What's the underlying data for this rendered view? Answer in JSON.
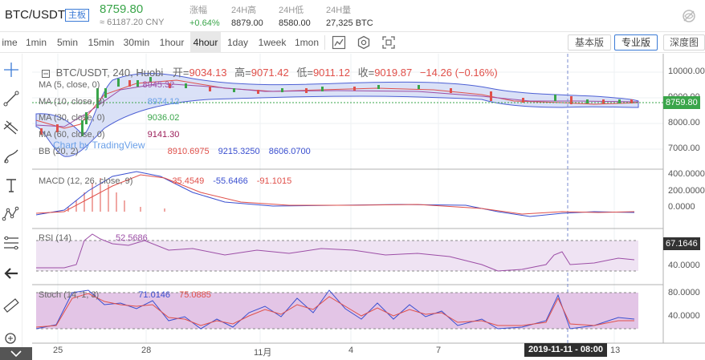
{
  "ticker": {
    "pair": "BTC/USDT",
    "board": "主板",
    "price": "8759.80",
    "cny": "≈ 61187.20 CNY",
    "stats": [
      {
        "label": "涨幅",
        "value": "+0.64%",
        "up": true
      },
      {
        "label": "24H高",
        "value": "8879.00",
        "up": false
      },
      {
        "label": "24H低",
        "value": "8580.00",
        "up": false
      },
      {
        "label": "24H量",
        "value": "27,325 BTC",
        "up": false
      }
    ]
  },
  "toolbar": {
    "timeframes": [
      "ime",
      "1min",
      "5min",
      "15min",
      "30min",
      "1hour",
      "4hour",
      "1day",
      "1week",
      "1mon"
    ],
    "active_timeframe": "4hour",
    "versions": [
      "基本版",
      "专业版",
      "深度图"
    ],
    "active_version": "专业版"
  },
  "legend": {
    "symbol": "BTC/USDT, 240, Huobi",
    "open_label": "开=",
    "open": "9034.13",
    "high_label": "高=",
    "high": "9071.42",
    "low_label": "低=",
    "low": "9011.12",
    "close_label": "收=",
    "close": "9019.87",
    "change": "−14.26 (−0.16%)",
    "ma5": {
      "name": "MA (5, close, 0)",
      "value": "8945.32"
    },
    "ma10": {
      "name": "MA (10, close, 0)",
      "value": "8974.12"
    },
    "ma30": {
      "name": "MA (30, close, 0)",
      "value": "9036.02"
    },
    "ma60": {
      "name": "MA (60, close, 0)",
      "value": "9141.30"
    },
    "bb": {
      "name": "BB (20, 2)",
      "v1": "8910.6975",
      "v2": "9215.3250",
      "v3": "8606.0700"
    },
    "macd": {
      "name": "MACD (12, 26, close, 9)",
      "v1": "35.4549",
      "v2": "-55.6466",
      "v3": "-91.1015"
    },
    "rsi": {
      "name": "RSI (14)",
      "value": "52.5686"
    },
    "stoch": {
      "name": "Stoch (14, 1, 3)",
      "v1": "71.0146",
      "v2": "75.0885"
    }
  },
  "watermark": "Chart by TradingView",
  "price_axis": [
    "10000.00",
    "9000.00",
    "8000.00",
    "7000.00"
  ],
  "current_price_tag": "8759.80",
  "macd_axis": [
    "400.0000",
    "200.0000",
    "0.0000"
  ],
  "rsi_axis_tag": "67.1646",
  "rsi_axis": [
    "40.0000"
  ],
  "stoch_axis": [
    "80.0000",
    "40.0000"
  ],
  "x_axis": [
    "25",
    "28",
    "11月",
    "4",
    "7",
    "13"
  ],
  "crosshair_time": "2019-11-11 - 08:00",
  "colors": {
    "up": "#3aa54a",
    "down": "#e0504a",
    "accent": "#3b7bd6",
    "bb_fill": "#d6def7"
  },
  "tools": [
    "crosshair-icon",
    "trend-line-icon",
    "pitchfork-icon",
    "brush-icon",
    "text-icon",
    "pattern-icon",
    "fib-icon",
    "arrow-left-icon",
    "ruler-icon",
    "zoom-icon"
  ]
}
